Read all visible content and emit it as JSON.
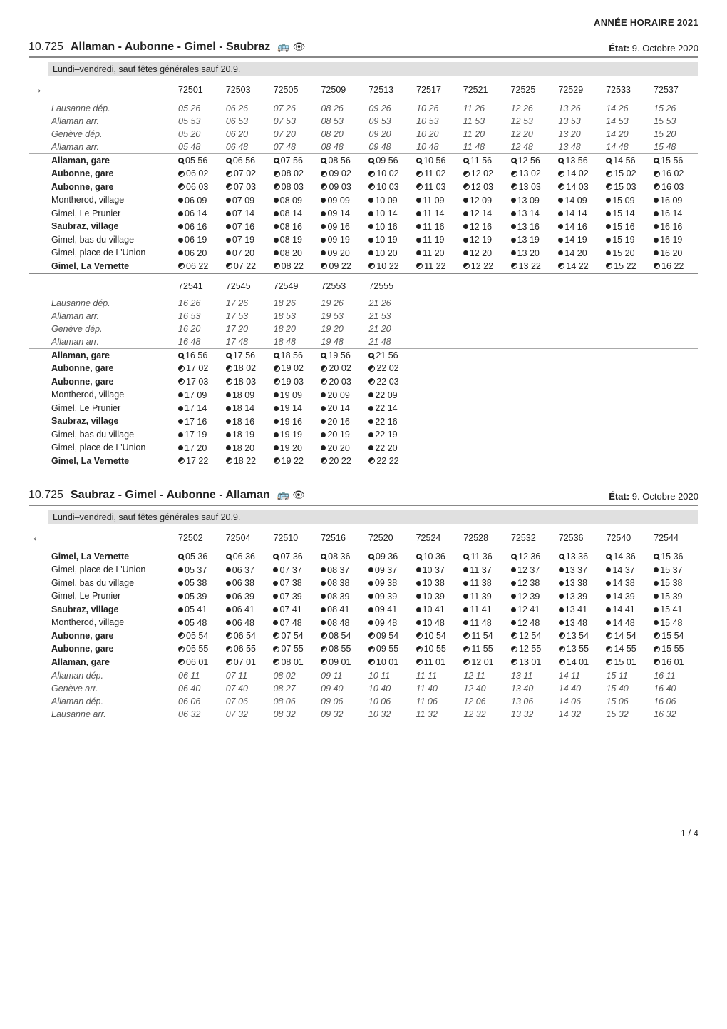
{
  "year_banner": "ANNÉE HORAIRE 2021",
  "page_number": "1 / 4",
  "routes": [
    {
      "number": "10.725",
      "title": "Allaman - Aubonne - Gimel - Saubraz",
      "icons": "🚌 👁",
      "state_label": "État:",
      "state_value": "9. Octobre 2020",
      "days": "Lundi–vendredi, sauf fêtes générales sauf 20.9.",
      "arrow": "→",
      "blocks": [
        {
          "trips": [
            "72501",
            "72503",
            "72505",
            "72509",
            "72513",
            "72517",
            "72521",
            "72525",
            "72529",
            "72533",
            "72537"
          ],
          "sections": [
            {
              "style": "italic",
              "rows": [
                {
                  "label": "Lausanne dép.",
                  "times": [
                    "05 26",
                    "06 26",
                    "07 26",
                    "08 26",
                    "09 26",
                    "10 26",
                    "11 26",
                    "12 26",
                    "13 26",
                    "14 26",
                    "15 26"
                  ],
                  "sym": ""
                },
                {
                  "label": "Allaman arr.",
                  "times": [
                    "05 53",
                    "06 53",
                    "07 53",
                    "08 53",
                    "09 53",
                    "10 53",
                    "11 53",
                    "12 53",
                    "13 53",
                    "14 53",
                    "15 53"
                  ],
                  "sym": ""
                },
                {
                  "label": "Genève dép.",
                  "times": [
                    "05 20",
                    "06 20",
                    "07 20",
                    "08 20",
                    "09 20",
                    "10 20",
                    "11 20",
                    "12 20",
                    "13 20",
                    "14 20",
                    "15 20"
                  ],
                  "sym": ""
                },
                {
                  "label": "Allaman arr.",
                  "times": [
                    "05 48",
                    "06 48",
                    "07 48",
                    "08 48",
                    "09 48",
                    "10 48",
                    "11 48",
                    "12 48",
                    "13 48",
                    "14 48",
                    "15 48"
                  ],
                  "sym": ""
                }
              ]
            },
            {
              "sep": true,
              "rows": [
                {
                  "label": "Allaman, gare",
                  "bold": true,
                  "times": [
                    "05 56",
                    "06 56",
                    "07 56",
                    "08 56",
                    "09 56",
                    "10 56",
                    "11 56",
                    "12 56",
                    "13 56",
                    "14 56",
                    "15 56"
                  ],
                  "sym": "circle"
                },
                {
                  "label": "Aubonne, gare",
                  "bold": true,
                  "times": [
                    "06 02",
                    "07 02",
                    "08 02",
                    "09 02",
                    "10 02",
                    "11 02",
                    "12 02",
                    "13 02",
                    "14 02",
                    "15 02",
                    "16 02"
                  ],
                  "sym": "half"
                },
                {
                  "label": "Aubonne, gare",
                  "bold": true,
                  "times": [
                    "06 03",
                    "07 03",
                    "08 03",
                    "09 03",
                    "10 03",
                    "11 03",
                    "12 03",
                    "13 03",
                    "14 03",
                    "15 03",
                    "16 03"
                  ],
                  "sym": "half"
                },
                {
                  "label": "Montherod, village",
                  "times": [
                    "06 09",
                    "07 09",
                    "08 09",
                    "09 09",
                    "10 09",
                    "11 09",
                    "12 09",
                    "13 09",
                    "14 09",
                    "15 09",
                    "16 09"
                  ],
                  "sym": "dot"
                },
                {
                  "label": "Gimel, Le Prunier",
                  "times": [
                    "06 14",
                    "07 14",
                    "08 14",
                    "09 14",
                    "10 14",
                    "11 14",
                    "12 14",
                    "13 14",
                    "14 14",
                    "15 14",
                    "16 14"
                  ],
                  "sym": "dot"
                },
                {
                  "label": "Saubraz, village",
                  "bold": true,
                  "times": [
                    "06 16",
                    "07 16",
                    "08 16",
                    "09 16",
                    "10 16",
                    "11 16",
                    "12 16",
                    "13 16",
                    "14 16",
                    "15 16",
                    "16 16"
                  ],
                  "sym": "dot"
                },
                {
                  "label": "Gimel, bas du village",
                  "times": [
                    "06 19",
                    "07 19",
                    "08 19",
                    "09 19",
                    "10 19",
                    "11 19",
                    "12 19",
                    "13 19",
                    "14 19",
                    "15 19",
                    "16 19"
                  ],
                  "sym": "dot"
                },
                {
                  "label": "Gimel, place de L'Union",
                  "times": [
                    "06 20",
                    "07 20",
                    "08 20",
                    "09 20",
                    "10 20",
                    "11 20",
                    "12 20",
                    "13 20",
                    "14 20",
                    "15 20",
                    "16 20"
                  ],
                  "sym": "dot"
                },
                {
                  "label": "Gimel, La Vernette",
                  "bold": true,
                  "times": [
                    "06 22",
                    "07 22",
                    "08 22",
                    "09 22",
                    "10 22",
                    "11 22",
                    "12 22",
                    "13 22",
                    "14 22",
                    "15 22",
                    "16 22"
                  ],
                  "sym": "half"
                }
              ]
            }
          ]
        },
        {
          "sep_thick": true,
          "trips": [
            "72541",
            "72545",
            "72549",
            "72553",
            "72555"
          ],
          "sections": [
            {
              "style": "italic",
              "rows": [
                {
                  "label": "Lausanne dép.",
                  "times": [
                    "16 26",
                    "17 26",
                    "18 26",
                    "19 26",
                    "21 26"
                  ],
                  "sym": ""
                },
                {
                  "label": "Allaman arr.",
                  "times": [
                    "16 53",
                    "17 53",
                    "18 53",
                    "19 53",
                    "21 53"
                  ],
                  "sym": ""
                },
                {
                  "label": "Genève dép.",
                  "times": [
                    "16 20",
                    "17 20",
                    "18 20",
                    "19 20",
                    "21 20"
                  ],
                  "sym": ""
                },
                {
                  "label": "Allaman arr.",
                  "times": [
                    "16 48",
                    "17 48",
                    "18 48",
                    "19 48",
                    "21 48"
                  ],
                  "sym": ""
                }
              ]
            },
            {
              "sep": true,
              "rows": [
                {
                  "label": "Allaman, gare",
                  "bold": true,
                  "times": [
                    "16 56",
                    "17 56",
                    "18 56",
                    "19 56",
                    "21 56"
                  ],
                  "sym": "circle"
                },
                {
                  "label": "Aubonne, gare",
                  "bold": true,
                  "times": [
                    "17 02",
                    "18 02",
                    "19 02",
                    "20 02",
                    "22 02"
                  ],
                  "sym": "half"
                },
                {
                  "label": "Aubonne, gare",
                  "bold": true,
                  "times": [
                    "17 03",
                    "18 03",
                    "19 03",
                    "20 03",
                    "22 03"
                  ],
                  "sym": "half"
                },
                {
                  "label": "Montherod, village",
                  "times": [
                    "17 09",
                    "18 09",
                    "19 09",
                    "20 09",
                    "22 09"
                  ],
                  "sym": "dot"
                },
                {
                  "label": "Gimel, Le Prunier",
                  "times": [
                    "17 14",
                    "18 14",
                    "19 14",
                    "20 14",
                    "22 14"
                  ],
                  "sym": "dot"
                },
                {
                  "label": "Saubraz, village",
                  "bold": true,
                  "times": [
                    "17 16",
                    "18 16",
                    "19 16",
                    "20 16",
                    "22 16"
                  ],
                  "sym": "dot"
                },
                {
                  "label": "Gimel, bas du village",
                  "times": [
                    "17 19",
                    "18 19",
                    "19 19",
                    "20 19",
                    "22 19"
                  ],
                  "sym": "dot"
                },
                {
                  "label": "Gimel, place de L'Union",
                  "times": [
                    "17 20",
                    "18 20",
                    "19 20",
                    "20 20",
                    "22 20"
                  ],
                  "sym": "dot"
                },
                {
                  "label": "Gimel, La Vernette",
                  "bold": true,
                  "times": [
                    "17 22",
                    "18 22",
                    "19 22",
                    "20 22",
                    "22 22"
                  ],
                  "sym": "half"
                }
              ]
            }
          ]
        }
      ]
    },
    {
      "number": "10.725",
      "title": "Saubraz - Gimel - Aubonne - Allaman",
      "icons": "🚌 👁",
      "state_label": "État:",
      "state_value": "9. Octobre 2020",
      "days": "Lundi–vendredi, sauf fêtes générales sauf 20.9.",
      "arrow": "←",
      "blocks": [
        {
          "trips": [
            "72502",
            "72504",
            "72510",
            "72516",
            "72520",
            "72524",
            "72528",
            "72532",
            "72536",
            "72540",
            "72544"
          ],
          "sections": [
            {
              "rows": [
                {
                  "label": "Gimel, La Vernette",
                  "bold": true,
                  "times": [
                    "05 36",
                    "06 36",
                    "07 36",
                    "08 36",
                    "09 36",
                    "10 36",
                    "11 36",
                    "12 36",
                    "13 36",
                    "14 36",
                    "15 36"
                  ],
                  "sym": "circle"
                },
                {
                  "label": "Gimel, place de L'Union",
                  "times": [
                    "05 37",
                    "06 37",
                    "07 37",
                    "08 37",
                    "09 37",
                    "10 37",
                    "11 37",
                    "12 37",
                    "13 37",
                    "14 37",
                    "15 37"
                  ],
                  "sym": "dot"
                },
                {
                  "label": "Gimel, bas du village",
                  "times": [
                    "05 38",
                    "06 38",
                    "07 38",
                    "08 38",
                    "09 38",
                    "10 38",
                    "11 38",
                    "12 38",
                    "13 38",
                    "14 38",
                    "15 38"
                  ],
                  "sym": "dot"
                },
                {
                  "label": "Gimel, Le Prunier",
                  "times": [
                    "05 39",
                    "06 39",
                    "07 39",
                    "08 39",
                    "09 39",
                    "10 39",
                    "11 39",
                    "12 39",
                    "13 39",
                    "14 39",
                    "15 39"
                  ],
                  "sym": "dot"
                },
                {
                  "label": "Saubraz, village",
                  "bold": true,
                  "times": [
                    "05 41",
                    "06 41",
                    "07 41",
                    "08 41",
                    "09 41",
                    "10 41",
                    "11 41",
                    "12 41",
                    "13 41",
                    "14 41",
                    "15 41"
                  ],
                  "sym": "dot"
                },
                {
                  "label": "Montherod, village",
                  "times": [
                    "05 48",
                    "06 48",
                    "07 48",
                    "08 48",
                    "09 48",
                    "10 48",
                    "11 48",
                    "12 48",
                    "13 48",
                    "14 48",
                    "15 48"
                  ],
                  "sym": "dot"
                },
                {
                  "label": "Aubonne, gare",
                  "bold": true,
                  "times": [
                    "05 54",
                    "06 54",
                    "07 54",
                    "08 54",
                    "09 54",
                    "10 54",
                    "11 54",
                    "12 54",
                    "13 54",
                    "14 54",
                    "15 54"
                  ],
                  "sym": "half"
                },
                {
                  "label": "Aubonne, gare",
                  "bold": true,
                  "times": [
                    "05 55",
                    "06 55",
                    "07 55",
                    "08 55",
                    "09 55",
                    "10 55",
                    "11 55",
                    "12 55",
                    "13 55",
                    "14 55",
                    "15 55"
                  ],
                  "sym": "half"
                },
                {
                  "label": "Allaman, gare",
                  "bold": true,
                  "times": [
                    "06 01",
                    "07 01",
                    "08 01",
                    "09 01",
                    "10 01",
                    "11 01",
                    "12 01",
                    "13 01",
                    "14 01",
                    "15 01",
                    "16 01"
                  ],
                  "sym": "half"
                }
              ]
            },
            {
              "sep": true,
              "style": "italic",
              "rows": [
                {
                  "label": "Allaman dép.",
                  "times": [
                    "06 11",
                    "07 11",
                    "08 02",
                    "09 11",
                    "10 11",
                    "11 11",
                    "12 11",
                    "13 11",
                    "14 11",
                    "15 11",
                    "16 11"
                  ],
                  "sym": ""
                },
                {
                  "label": "Genève arr.",
                  "times": [
                    "06 40",
                    "07 40",
                    "08 27",
                    "09 40",
                    "10 40",
                    "11 40",
                    "12 40",
                    "13 40",
                    "14 40",
                    "15 40",
                    "16 40"
                  ],
                  "sym": ""
                },
                {
                  "label": "Allaman dép.",
                  "times": [
                    "06 06",
                    "07 06",
                    "08 06",
                    "09 06",
                    "10 06",
                    "11 06",
                    "12 06",
                    "13 06",
                    "14 06",
                    "15 06",
                    "16 06"
                  ],
                  "sym": ""
                },
                {
                  "label": "Lausanne arr.",
                  "times": [
                    "06 32",
                    "07 32",
                    "08 32",
                    "09 32",
                    "10 32",
                    "11 32",
                    "12 32",
                    "13 32",
                    "14 32",
                    "15 32",
                    "16 32"
                  ],
                  "sym": ""
                }
              ]
            }
          ]
        }
      ]
    }
  ]
}
